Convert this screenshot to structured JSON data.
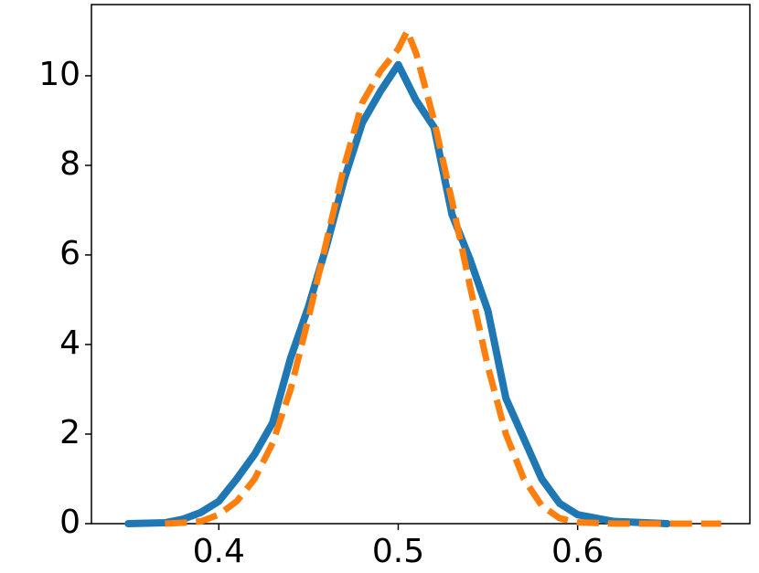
{
  "chart_data": {
    "type": "line",
    "xlim": [
      0.329,
      0.696
    ],
    "ylim": [
      0,
      11.59
    ],
    "xticks": [
      0.4,
      0.5,
      0.6
    ],
    "yticks": [
      0,
      2,
      4,
      6,
      8,
      10
    ],
    "grid": false,
    "series": [
      {
        "color": "#1f77b4",
        "style": "solid",
        "x": [
          0.3495,
          0.37,
          0.38,
          0.39,
          0.4,
          0.41,
          0.42,
          0.43,
          0.44,
          0.45,
          0.46,
          0.47,
          0.48,
          0.49,
          0.5,
          0.51,
          0.52,
          0.53,
          0.54,
          0.55,
          0.56,
          0.57,
          0.58,
          0.59,
          0.6,
          0.62,
          0.65
        ],
        "values": [
          0,
          0.02,
          0.1,
          0.25,
          0.5,
          1.0,
          1.55,
          2.25,
          3.7,
          4.85,
          6.2,
          7.7,
          8.95,
          9.65,
          10.25,
          9.45,
          8.85,
          6.9,
          5.9,
          4.75,
          2.8,
          1.9,
          1.0,
          0.45,
          0.2,
          0.05,
          0
        ]
      },
      {
        "color": "#ff7f0e",
        "style": "dashed",
        "x": [
          0.37,
          0.38,
          0.39,
          0.4,
          0.41,
          0.42,
          0.43,
          0.44,
          0.45,
          0.46,
          0.47,
          0.48,
          0.49,
          0.5,
          0.505,
          0.51,
          0.52,
          0.53,
          0.54,
          0.55,
          0.56,
          0.57,
          0.58,
          0.59,
          0.6,
          0.62,
          0.68
        ],
        "values": [
          0,
          0.02,
          0.05,
          0.2,
          0.5,
          1.0,
          1.8,
          3.0,
          4.6,
          6.3,
          8.0,
          9.4,
          10.1,
          10.6,
          11.0,
          10.5,
          9.0,
          7.2,
          5.3,
          3.5,
          2.0,
          1.0,
          0.4,
          0.12,
          0.03,
          0,
          0
        ]
      }
    ]
  }
}
